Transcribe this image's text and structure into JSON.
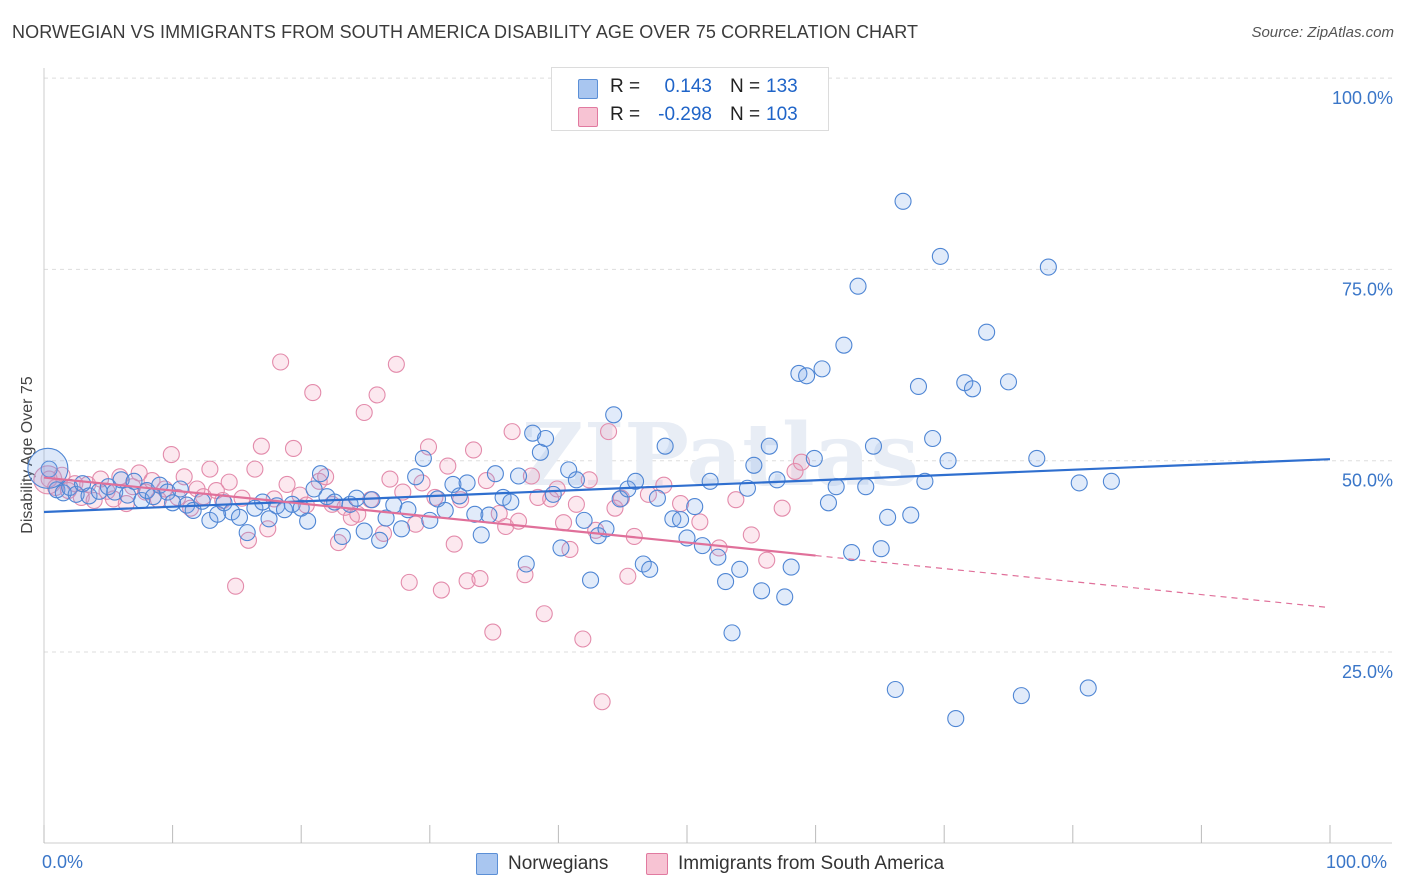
{
  "title": "NORWEGIAN VS IMMIGRANTS FROM SOUTH AMERICA DISABILITY AGE OVER 75 CORRELATION CHART",
  "source": "Source: ZipAtlas.com",
  "watermark": "ZIPatlas",
  "stats": {
    "rows": [
      {
        "r_label": "R =",
        "r_value": "0.143",
        "n_label": "N =",
        "n_value": "133",
        "color": "#a9c6f0",
        "border": "#5b8fd6"
      },
      {
        "r_label": "R =",
        "r_value": "-0.298",
        "n_label": "N =",
        "n_value": "103",
        "color": "#f7c3d3",
        "border": "#e17aa0"
      }
    ]
  },
  "legend": {
    "items": [
      {
        "label": "Norwegians",
        "color": "#a9c6f0",
        "border": "#5b8fd6"
      },
      {
        "label": "Immigrants from South America",
        "color": "#f7c3d3",
        "border": "#e17aa0"
      }
    ]
  },
  "colors": {
    "blue_line": "#2f6fcf",
    "pink_line": "#e0709a",
    "blue_fill": "rgba(120,165,230,0.22)",
    "blue_stroke": "#4f86d4",
    "pink_fill": "rgba(240,150,180,0.22)",
    "pink_stroke": "#e38bab",
    "grid": "#dddddd",
    "tick_label": "#3a76c8"
  },
  "chart_data": {
    "type": "scatter",
    "title": "NORWEGIAN VS IMMIGRANTS FROM SOUTH AMERICA DISABILITY AGE OVER 75 CORRELATION CHART",
    "xlabel": "",
    "ylabel": "Disability Age Over 75",
    "xlim": [
      0,
      100
    ],
    "ylim": [
      0,
      100
    ],
    "x_tick_labels": [
      "0.0%",
      "100.0%"
    ],
    "y_ticks": [
      25,
      50,
      75,
      100
    ],
    "y_tick_labels": [
      "25.0%",
      "50.0%",
      "75.0%",
      "100.0%"
    ],
    "series": [
      {
        "name": "Norwegians",
        "trend": {
          "x": [
            0,
            100
          ],
          "y": [
            43.3,
            50.2
          ],
          "dashed_from": null
        },
        "points": [
          [
            0.4,
            48.9
          ],
          [
            1.0,
            46.2
          ],
          [
            1.5,
            45.8
          ],
          [
            2.0,
            46.5
          ],
          [
            2.5,
            45.6
          ],
          [
            3.0,
            47.0
          ],
          [
            3.5,
            45.4
          ],
          [
            4.3,
            46.0
          ],
          [
            5.0,
            46.6
          ],
          [
            5.5,
            45.9
          ],
          [
            6.0,
            47.5
          ],
          [
            6.5,
            45.5
          ],
          [
            7.0,
            47.3
          ],
          [
            7.6,
            44.8
          ],
          [
            8.0,
            46.1
          ],
          [
            8.5,
            45.3
          ],
          [
            9.0,
            46.8
          ],
          [
            9.6,
            45.9
          ],
          [
            10.0,
            44.5
          ],
          [
            10.6,
            46.3
          ],
          [
            11.1,
            44.2
          ],
          [
            11.6,
            43.5
          ],
          [
            12.3,
            44.7
          ],
          [
            12.9,
            42.2
          ],
          [
            13.5,
            43.0
          ],
          [
            14.0,
            44.5
          ],
          [
            14.6,
            43.3
          ],
          [
            15.2,
            42.6
          ],
          [
            15.8,
            40.6
          ],
          [
            16.4,
            43.8
          ],
          [
            17.0,
            44.6
          ],
          [
            17.5,
            42.4
          ],
          [
            18.1,
            44.1
          ],
          [
            18.7,
            43.6
          ],
          [
            19.3,
            44.3
          ],
          [
            20.0,
            43.8
          ],
          [
            20.5,
            42.1
          ],
          [
            21.0,
            46.3
          ],
          [
            21.5,
            48.3
          ],
          [
            22.0,
            45.3
          ],
          [
            22.6,
            44.6
          ],
          [
            23.2,
            40.1
          ],
          [
            23.8,
            44.3
          ],
          [
            24.3,
            45.1
          ],
          [
            24.9,
            40.8
          ],
          [
            25.5,
            44.9
          ],
          [
            26.1,
            39.6
          ],
          [
            26.6,
            42.5
          ],
          [
            27.2,
            44.2
          ],
          [
            27.8,
            41.1
          ],
          [
            28.3,
            43.6
          ],
          [
            28.9,
            47.9
          ],
          [
            29.5,
            50.3
          ],
          [
            30.0,
            42.2
          ],
          [
            30.6,
            45.0
          ],
          [
            31.2,
            43.5
          ],
          [
            31.8,
            46.9
          ],
          [
            32.3,
            45.4
          ],
          [
            32.9,
            47.1
          ],
          [
            33.5,
            43.0
          ],
          [
            34.0,
            40.3
          ],
          [
            34.6,
            42.9
          ],
          [
            35.1,
            48.3
          ],
          [
            35.7,
            45.2
          ],
          [
            36.3,
            44.6
          ],
          [
            36.9,
            48.0
          ],
          [
            37.5,
            36.5
          ],
          [
            38.0,
            53.6
          ],
          [
            38.6,
            51.1
          ],
          [
            39.0,
            52.9
          ],
          [
            39.6,
            45.6
          ],
          [
            40.2,
            38.6
          ],
          [
            40.8,
            48.8
          ],
          [
            41.4,
            47.5
          ],
          [
            42.0,
            42.2
          ],
          [
            42.5,
            34.4
          ],
          [
            43.1,
            40.2
          ],
          [
            43.7,
            41.1
          ],
          [
            44.3,
            56.0
          ],
          [
            44.8,
            45.0
          ],
          [
            45.4,
            46.3
          ],
          [
            46.0,
            47.3
          ],
          [
            46.6,
            36.5
          ],
          [
            47.1,
            35.8
          ],
          [
            47.7,
            45.1
          ],
          [
            48.3,
            51.9
          ],
          [
            48.9,
            42.4
          ],
          [
            49.5,
            42.3
          ],
          [
            50.0,
            39.9
          ],
          [
            50.6,
            44.0
          ],
          [
            51.2,
            38.9
          ],
          [
            51.8,
            47.3
          ],
          [
            52.4,
            37.4
          ],
          [
            53.0,
            34.2
          ],
          [
            53.5,
            27.5
          ],
          [
            54.1,
            35.8
          ],
          [
            54.7,
            46.4
          ],
          [
            55.2,
            49.4
          ],
          [
            55.8,
            33.0
          ],
          [
            56.4,
            51.9
          ],
          [
            57.0,
            47.5
          ],
          [
            57.6,
            32.2
          ],
          [
            58.1,
            36.1
          ],
          [
            58.7,
            61.4
          ],
          [
            59.3,
            61.1
          ],
          [
            59.9,
            50.3
          ],
          [
            60.5,
            62.0
          ],
          [
            61.0,
            44.5
          ],
          [
            61.6,
            46.6
          ],
          [
            62.2,
            65.1
          ],
          [
            62.8,
            38.0
          ],
          [
            63.3,
            72.8
          ],
          [
            63.9,
            46.6
          ],
          [
            64.5,
            51.9
          ],
          [
            65.1,
            38.5
          ],
          [
            65.6,
            42.6
          ],
          [
            66.2,
            20.1
          ],
          [
            66.8,
            83.9
          ],
          [
            67.4,
            42.9
          ],
          [
            68.0,
            59.7
          ],
          [
            68.5,
            47.3
          ],
          [
            69.1,
            52.9
          ],
          [
            69.7,
            76.7
          ],
          [
            70.3,
            50.0
          ],
          [
            70.9,
            16.3
          ],
          [
            71.6,
            60.2
          ],
          [
            72.2,
            59.4
          ],
          [
            73.3,
            66.8
          ],
          [
            75.0,
            60.3
          ],
          [
            76.0,
            19.3
          ],
          [
            77.2,
            50.3
          ],
          [
            78.1,
            75.3
          ],
          [
            80.5,
            47.1
          ],
          [
            81.2,
            20.3
          ],
          [
            83.0,
            47.3
          ]
        ]
      },
      {
        "name": "Immigrants from South America",
        "trend": {
          "x": [
            0,
            60,
            100
          ],
          "y": [
            47.8,
            37.6,
            30.8
          ],
          "dashed_from": 60
        },
        "points": [
          [
            0.4,
            47.6
          ],
          [
            0.9,
            46.5
          ],
          [
            1.4,
            48.1
          ],
          [
            1.9,
            46.1
          ],
          [
            2.4,
            47.0
          ],
          [
            2.9,
            45.2
          ],
          [
            3.4,
            46.9
          ],
          [
            3.9,
            44.8
          ],
          [
            4.4,
            47.6
          ],
          [
            4.9,
            46.0
          ],
          [
            5.4,
            45.0
          ],
          [
            5.9,
            47.9
          ],
          [
            6.4,
            44.4
          ],
          [
            6.9,
            46.6
          ],
          [
            7.4,
            48.4
          ],
          [
            7.9,
            45.9
          ],
          [
            8.4,
            47.4
          ],
          [
            8.9,
            44.9
          ],
          [
            9.4,
            46.3
          ],
          [
            9.9,
            50.8
          ],
          [
            10.4,
            45.2
          ],
          [
            10.9,
            47.9
          ],
          [
            11.4,
            43.8
          ],
          [
            11.9,
            46.3
          ],
          [
            12.4,
            45.3
          ],
          [
            12.9,
            48.9
          ],
          [
            13.4,
            46.1
          ],
          [
            13.9,
            44.8
          ],
          [
            14.4,
            47.2
          ],
          [
            14.9,
            33.6
          ],
          [
            15.4,
            45.1
          ],
          [
            15.9,
            39.6
          ],
          [
            16.4,
            48.9
          ],
          [
            16.9,
            51.9
          ],
          [
            17.4,
            41.1
          ],
          [
            17.9,
            45.0
          ],
          [
            18.4,
            62.9
          ],
          [
            18.9,
            46.9
          ],
          [
            19.4,
            51.6
          ],
          [
            19.9,
            45.5
          ],
          [
            20.4,
            44.2
          ],
          [
            20.9,
            58.9
          ],
          [
            21.4,
            47.3
          ],
          [
            21.9,
            47.9
          ],
          [
            22.4,
            44.3
          ],
          [
            22.9,
            39.3
          ],
          [
            23.4,
            43.9
          ],
          [
            23.9,
            42.6
          ],
          [
            24.4,
            43.0
          ],
          [
            24.9,
            56.3
          ],
          [
            25.4,
            44.9
          ],
          [
            25.9,
            58.6
          ],
          [
            26.4,
            40.5
          ],
          [
            26.9,
            47.6
          ],
          [
            27.4,
            62.6
          ],
          [
            27.9,
            45.9
          ],
          [
            28.4,
            34.1
          ],
          [
            28.9,
            41.7
          ],
          [
            29.4,
            47.1
          ],
          [
            29.9,
            51.8
          ],
          [
            30.4,
            45.2
          ],
          [
            30.9,
            33.1
          ],
          [
            31.4,
            49.3
          ],
          [
            31.9,
            39.1
          ],
          [
            32.4,
            44.9
          ],
          [
            32.9,
            34.3
          ],
          [
            33.4,
            51.4
          ],
          [
            33.9,
            34.6
          ],
          [
            34.4,
            47.4
          ],
          [
            34.9,
            27.6
          ],
          [
            35.4,
            43.1
          ],
          [
            35.9,
            41.4
          ],
          [
            36.4,
            53.8
          ],
          [
            36.9,
            42.1
          ],
          [
            37.4,
            35.1
          ],
          [
            37.9,
            48.0
          ],
          [
            38.4,
            45.2
          ],
          [
            38.9,
            30.0
          ],
          [
            39.4,
            45.0
          ],
          [
            39.9,
            46.3
          ],
          [
            40.4,
            41.9
          ],
          [
            40.9,
            38.4
          ],
          [
            41.4,
            44.3
          ],
          [
            41.9,
            26.7
          ],
          [
            42.4,
            47.5
          ],
          [
            42.9,
            40.9
          ],
          [
            43.4,
            18.5
          ],
          [
            43.9,
            53.8
          ],
          [
            44.4,
            43.8
          ],
          [
            44.9,
            45.1
          ],
          [
            45.4,
            34.9
          ],
          [
            45.9,
            40.1
          ],
          [
            47.0,
            45.6
          ],
          [
            48.2,
            46.8
          ],
          [
            49.5,
            44.4
          ],
          [
            51.0,
            42.0
          ],
          [
            52.5,
            38.6
          ],
          [
            53.8,
            44.9
          ],
          [
            55.0,
            40.3
          ],
          [
            56.2,
            37.0
          ],
          [
            57.4,
            43.8
          ],
          [
            58.4,
            48.6
          ],
          [
            58.9,
            49.8
          ]
        ]
      }
    ]
  }
}
